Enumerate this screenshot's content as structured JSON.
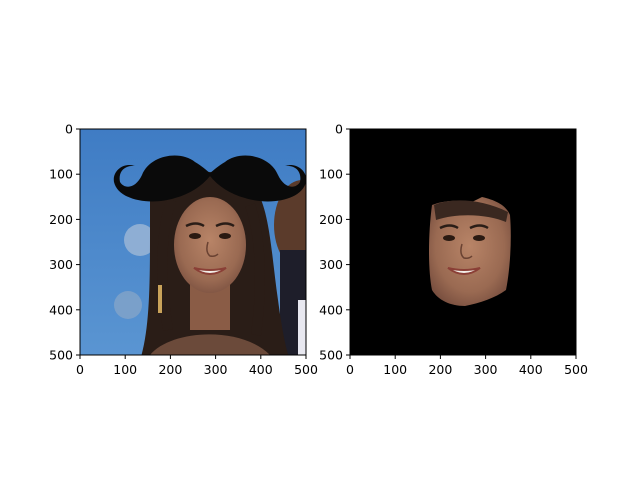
{
  "chart_data": [
    {
      "type": "image",
      "panel": "left",
      "content": "photo of a smiling woman with long dark hair against a blue background, a black mustache graphic overlaid above her head",
      "xlim": [
        0,
        500
      ],
      "ylim": [
        500,
        0
      ],
      "y_inverted": true,
      "x_ticks": [
        "0",
        "100",
        "200",
        "300",
        "400",
        "500"
      ],
      "y_ticks": [
        "0",
        "100",
        "200",
        "300",
        "400",
        "500"
      ],
      "grid": false,
      "colors": {
        "background": "#4a86c8",
        "mustache": "#0a0a0a",
        "hair": "#2a1d17",
        "skin": "#a0715a"
      }
    },
    {
      "type": "image",
      "panel": "right",
      "content": "masked face crop of the same woman on a black background",
      "xlim": [
        0,
        500
      ],
      "ylim": [
        500,
        0
      ],
      "y_inverted": true,
      "x_ticks": [
        "0",
        "100",
        "200",
        "300",
        "400",
        "500"
      ],
      "y_ticks": [
        "0",
        "100",
        "200",
        "300",
        "400",
        "500"
      ],
      "grid": false,
      "colors": {
        "background": "#000000",
        "skin": "#a0715a"
      }
    }
  ]
}
